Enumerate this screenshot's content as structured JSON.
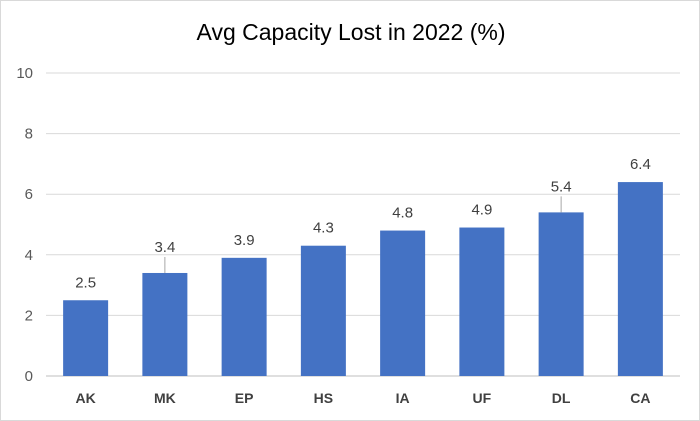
{
  "chart_data": {
    "type": "bar",
    "title": "Avg Capacity Lost in 2022 (%)",
    "xlabel": "",
    "ylabel": "",
    "categories": [
      "AK",
      "MK",
      "EP",
      "HS",
      "IA",
      "UF",
      "DL",
      "CA"
    ],
    "values": [
      2.5,
      3.4,
      3.9,
      4.3,
      4.8,
      4.9,
      5.4,
      6.4
    ],
    "data_labels": [
      "2.5",
      "3.4",
      "3.9",
      "4.3",
      "4.8",
      "4.9",
      "5.4",
      "6.4"
    ],
    "ylim": [
      0,
      10
    ],
    "yticks": [
      0,
      2,
      4,
      6,
      8,
      10
    ],
    "grid": true,
    "legend": "none",
    "bar_color": "#4472C4"
  }
}
